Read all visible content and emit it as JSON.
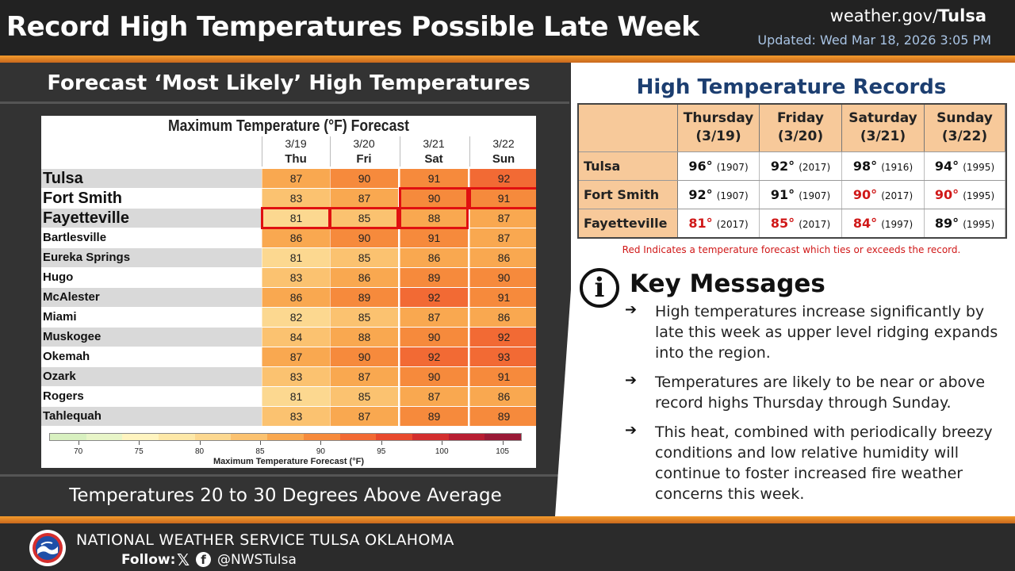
{
  "header": {
    "title": "Record High Temperatures Possible Late Week",
    "site_prefix": "weather.gov/",
    "site_office": "Tulsa",
    "updated": "Updated: Wed Mar 18, 2026 3:05 PM"
  },
  "left_panel": {
    "title": "Forecast ‘Most Likely’ High Temperatures",
    "caption": "Temperatures 20 to 30 Degrees Above Average"
  },
  "forecast_table": {
    "title": "Maximum Temperature (°F) Forecast",
    "columns": [
      {
        "date": "3/19",
        "day": "Thu"
      },
      {
        "date": "3/20",
        "day": "Fri"
      },
      {
        "date": "3/21",
        "day": "Sat"
      },
      {
        "date": "3/22",
        "day": "Sun"
      }
    ],
    "rows": [
      {
        "city": "Tulsa",
        "values": [
          87,
          90,
          91,
          92
        ]
      },
      {
        "city": "Fort Smith",
        "values": [
          83,
          87,
          90,
          91
        ]
      },
      {
        "city": "Fayetteville",
        "values": [
          81,
          85,
          88,
          87
        ]
      },
      {
        "city": "Bartlesville",
        "values": [
          86,
          90,
          91,
          87
        ]
      },
      {
        "city": "Eureka Springs",
        "values": [
          81,
          85,
          86,
          86
        ]
      },
      {
        "city": "Hugo",
        "values": [
          83,
          86,
          89,
          90
        ]
      },
      {
        "city": "McAlester",
        "values": [
          86,
          89,
          92,
          91
        ]
      },
      {
        "city": "Miami",
        "values": [
          82,
          85,
          87,
          86
        ]
      },
      {
        "city": "Muskogee",
        "values": [
          84,
          88,
          90,
          92
        ]
      },
      {
        "city": "Okemah",
        "values": [
          87,
          90,
          92,
          93
        ]
      },
      {
        "city": "Ozark",
        "values": [
          83,
          87,
          90,
          91
        ]
      },
      {
        "city": "Rogers",
        "values": [
          81,
          85,
          87,
          86
        ]
      },
      {
        "city": "Tahlequah",
        "values": [
          83,
          87,
          89,
          89
        ]
      }
    ],
    "record_ties": [
      {
        "row": 1,
        "col": 2
      },
      {
        "row": 1,
        "col": 3
      },
      {
        "row": 2,
        "col": 0
      },
      {
        "row": 2,
        "col": 1
      },
      {
        "row": 2,
        "col": 2
      }
    ],
    "colorbar": {
      "title": "Maximum Temperature Forecast (°F)",
      "ticks": [
        "70",
        "75",
        "80",
        "85",
        "90",
        "95",
        "100",
        "105"
      ],
      "colors": [
        "#d8f0c0",
        "#e8f5c8",
        "#fff4c0",
        "#fde8a8",
        "#fcd890",
        "#fbc270",
        "#f9a850",
        "#f68a3c",
        "#f26a34",
        "#e84a2e",
        "#d32e2e",
        "#b81e32",
        "#9a1a36"
      ]
    }
  },
  "records": {
    "title": "High Temperature Records",
    "columns": [
      {
        "day": "Thursday",
        "date": "(3/19)"
      },
      {
        "day": "Friday",
        "date": "(3/20)"
      },
      {
        "day": "Saturday",
        "date": "(3/21)"
      },
      {
        "day": "Sunday",
        "date": "(3/22)"
      }
    ],
    "rows": [
      {
        "city": "Tulsa",
        "cells": [
          {
            "value": "96°",
            "year": "(1907)",
            "tied": false
          },
          {
            "value": "92°",
            "year": "(2017)",
            "tied": false
          },
          {
            "value": "98°",
            "year": "(1916)",
            "tied": false
          },
          {
            "value": "94°",
            "year": "(1995)",
            "tied": false
          }
        ]
      },
      {
        "city": "Fort Smith",
        "cells": [
          {
            "value": "92°",
            "year": "(1907)",
            "tied": false
          },
          {
            "value": "91°",
            "year": "(1907)",
            "tied": false
          },
          {
            "value": "90°",
            "year": "(2017)",
            "tied": true
          },
          {
            "value": "90°",
            "year": "(1995)",
            "tied": true
          }
        ]
      },
      {
        "city": "Fayetteville",
        "cells": [
          {
            "value": "81°",
            "year": "(2017)",
            "tied": true
          },
          {
            "value": "85°",
            "year": "(2017)",
            "tied": true
          },
          {
            "value": "84°",
            "year": "(1997)",
            "tied": true
          },
          {
            "value": "89°",
            "year": "(1995)",
            "tied": false
          }
        ]
      }
    ],
    "note": "Red Indicates a temperature forecast which ties or exceeds the record."
  },
  "key_messages": {
    "icon": "info-icon",
    "glyph": "i",
    "arrow": "➔",
    "title": "Key Messages",
    "items": [
      "High temperatures increase significantly by late this week as upper level ridging expands into the region.",
      "Temperatures are likely to be near or above record highs Thursday through Sunday.",
      "This heat, combined with periodically breezy conditions and low relative humidity will continue to foster increased fire weather concerns this week."
    ]
  },
  "footer": {
    "org": "NATIONAL WEATHER SERVICE TULSA OKLAHOMA",
    "follow_label": "Follow:",
    "x_glyph": "𝕏",
    "fb_glyph": "f",
    "handle": "@NWSTulsa",
    "logo_text": "NATIONAL WEATHER SERVICE"
  }
}
